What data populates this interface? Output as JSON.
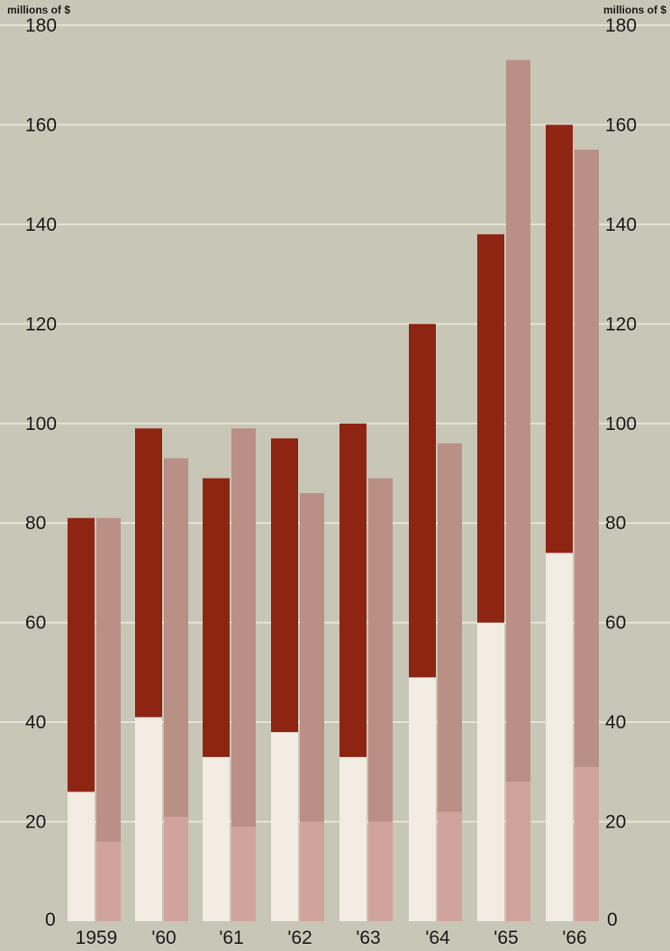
{
  "chart_data": {
    "type": "bar",
    "y_unit_label_left": "millions of $",
    "y_unit_label_right": "millions of $",
    "ylim": [
      0,
      180
    ],
    "yticks": [
      0,
      20,
      40,
      60,
      80,
      100,
      120,
      140,
      160,
      180
    ],
    "grid": true,
    "categories": [
      "1959",
      "'60",
      "'61",
      "'62",
      "'63",
      "'64",
      "'65",
      "'66"
    ],
    "series": [
      {
        "bar": "left",
        "segment": "lower",
        "color": "#f3ece2",
        "values": [
          26,
          41,
          33,
          38,
          33,
          49,
          60,
          74
        ]
      },
      {
        "bar": "left",
        "segment": "upper",
        "color": "#8e2412",
        "values": [
          55,
          58,
          56,
          59,
          67,
          71,
          78,
          86
        ]
      },
      {
        "bar": "right",
        "segment": "lower",
        "color": "#d0a49c",
        "values": [
          16,
          21,
          19,
          20,
          20,
          22,
          28,
          31
        ]
      },
      {
        "bar": "right",
        "segment": "upper",
        "color": "#b98f86",
        "values": [
          65,
          72,
          80,
          66,
          69,
          74,
          145,
          124
        ]
      }
    ],
    "colors": {
      "background": "#c8c6b6",
      "gridline": "#e6e4d6"
    }
  }
}
